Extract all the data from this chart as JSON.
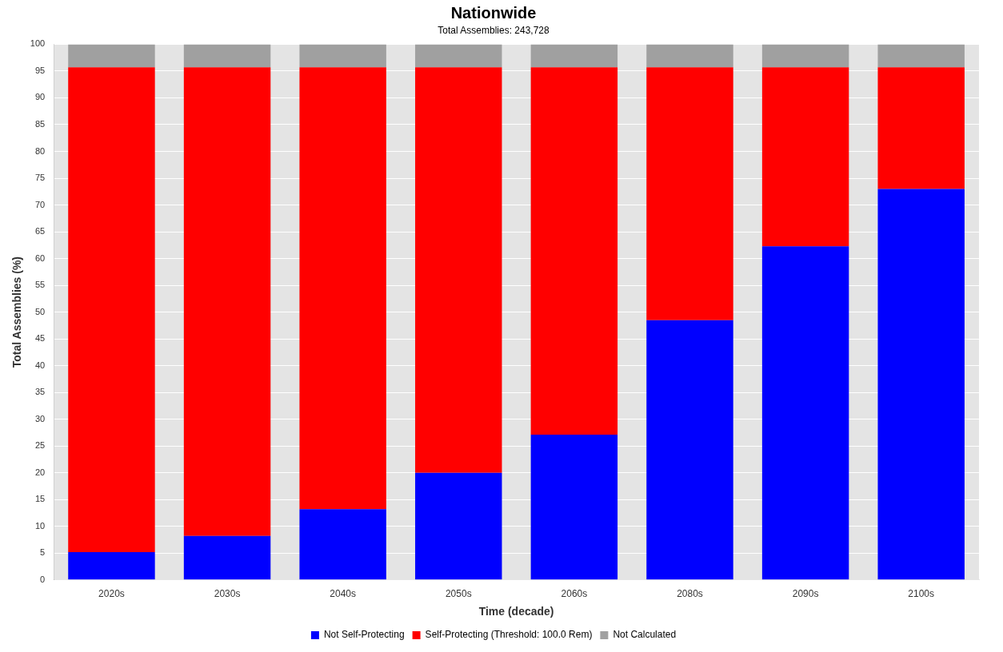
{
  "chart_data": {
    "type": "bar",
    "title": "Nationwide",
    "subtitle": "Total Assemblies: 243,728",
    "xlabel": "Time (decade)",
    "ylabel": "Total Assemblies (%)",
    "categories": [
      "2020s",
      "2030s",
      "2040s",
      "2050s",
      "2060s",
      "2080s",
      "2090s",
      "2100s"
    ],
    "stacked": true,
    "series": [
      {
        "name": "Not Self-Protecting",
        "color": "#0000ff",
        "values": [
          5.2,
          8.2,
          13.2,
          20,
          27.1,
          48.5,
          62.3,
          73
        ]
      },
      {
        "name": "Self-Protecting (Threshold: 100.0 Rem)",
        "color": "#ff0000",
        "values": [
          90.5,
          87.5,
          82.5,
          75.7,
          68.6,
          47.2,
          33.4,
          22.7
        ]
      },
      {
        "name": "Not Calculated",
        "color": "#a0a0a0",
        "values": [
          4.3,
          4.3,
          4.3,
          4.3,
          4.3,
          4.3,
          4.3,
          4.3
        ]
      }
    ],
    "ylim": [
      0,
      100
    ],
    "yticks": [
      0,
      5,
      10,
      15,
      20,
      25,
      30,
      35,
      40,
      45,
      50,
      55,
      60,
      65,
      70,
      75,
      80,
      85,
      90,
      95,
      100
    ],
    "grid": "y",
    "legend": "bottom"
  }
}
